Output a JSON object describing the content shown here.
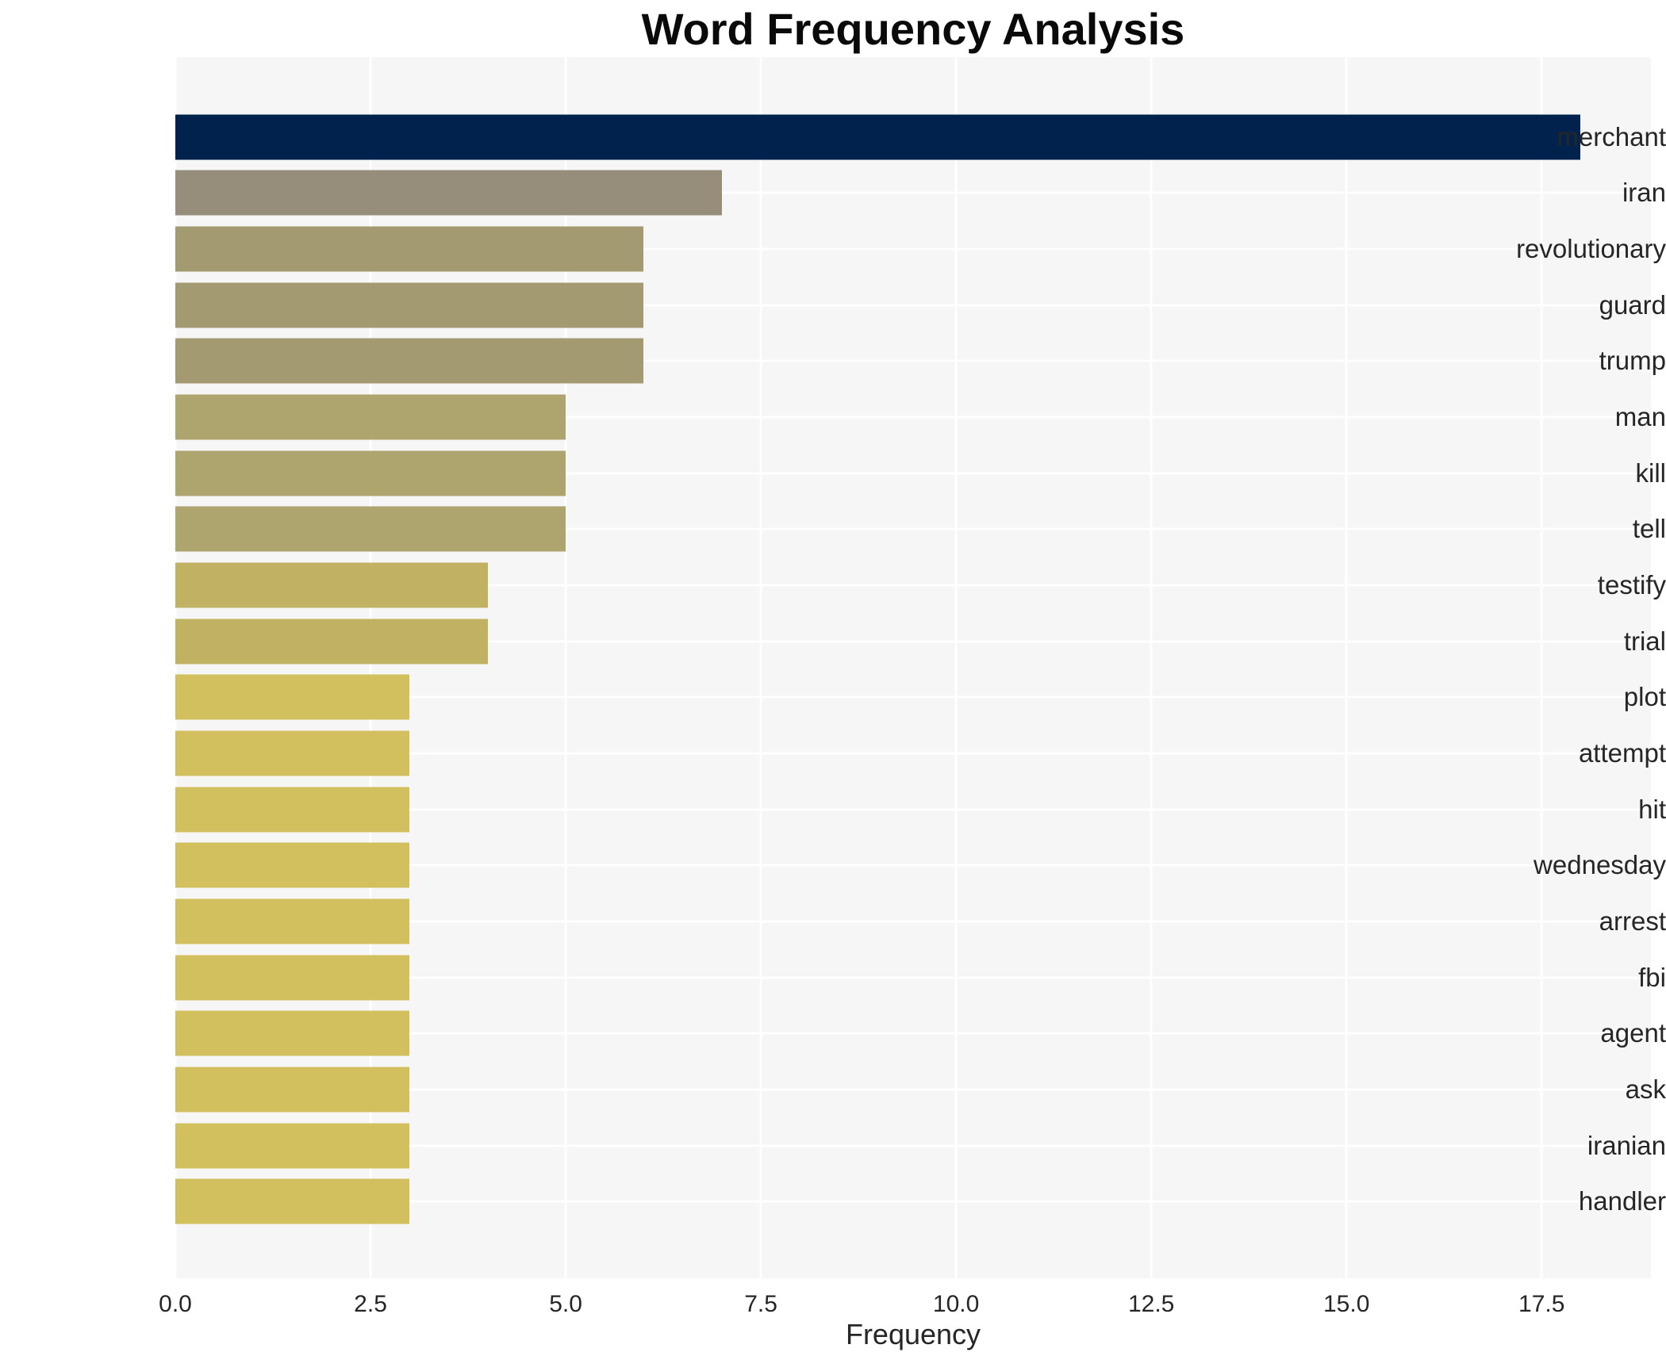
{
  "chart_data": {
    "type": "bar",
    "orientation": "horizontal",
    "title": "Word Frequency Analysis",
    "xlabel": "Frequency",
    "ylabel": "",
    "categories": [
      "merchant",
      "iran",
      "revolutionary",
      "guard",
      "trump",
      "man",
      "kill",
      "tell",
      "testify",
      "trial",
      "plot",
      "attempt",
      "hit",
      "wednesday",
      "arrest",
      "fbi",
      "agent",
      "ask",
      "iranian",
      "handler"
    ],
    "values": [
      18,
      7,
      6,
      6,
      6,
      5,
      5,
      5,
      4,
      4,
      3,
      3,
      3,
      3,
      3,
      3,
      3,
      3,
      3,
      3
    ],
    "bar_colors": [
      "#02224e",
      "#968e7b",
      "#a49a72",
      "#a49a72",
      "#a49a72",
      "#aea46e",
      "#aea46e",
      "#aea46e",
      "#c1b263",
      "#c1b263",
      "#d2c05f",
      "#d2c05f",
      "#d2c05f",
      "#d2c05f",
      "#d2c05f",
      "#d2c05f",
      "#d2c05f",
      "#d2c05f",
      "#d2c05f",
      "#d2c05f"
    ],
    "xlim": [
      0,
      18.9
    ],
    "xtick_values": [
      0,
      2.5,
      5,
      7.5,
      10,
      12.5,
      15,
      17.5
    ],
    "xtick_labels": [
      "0.0",
      "2.5",
      "5.0",
      "7.5",
      "10.0",
      "12.5",
      "15.0",
      "17.5"
    ],
    "grid": true,
    "gridline_color": "#ffffff",
    "legend": false,
    "colors": {
      "figure_background": "#ffffff",
      "plot_background": "#f6f6f7",
      "text": "#262626",
      "title": "#0a0a0a"
    }
  }
}
